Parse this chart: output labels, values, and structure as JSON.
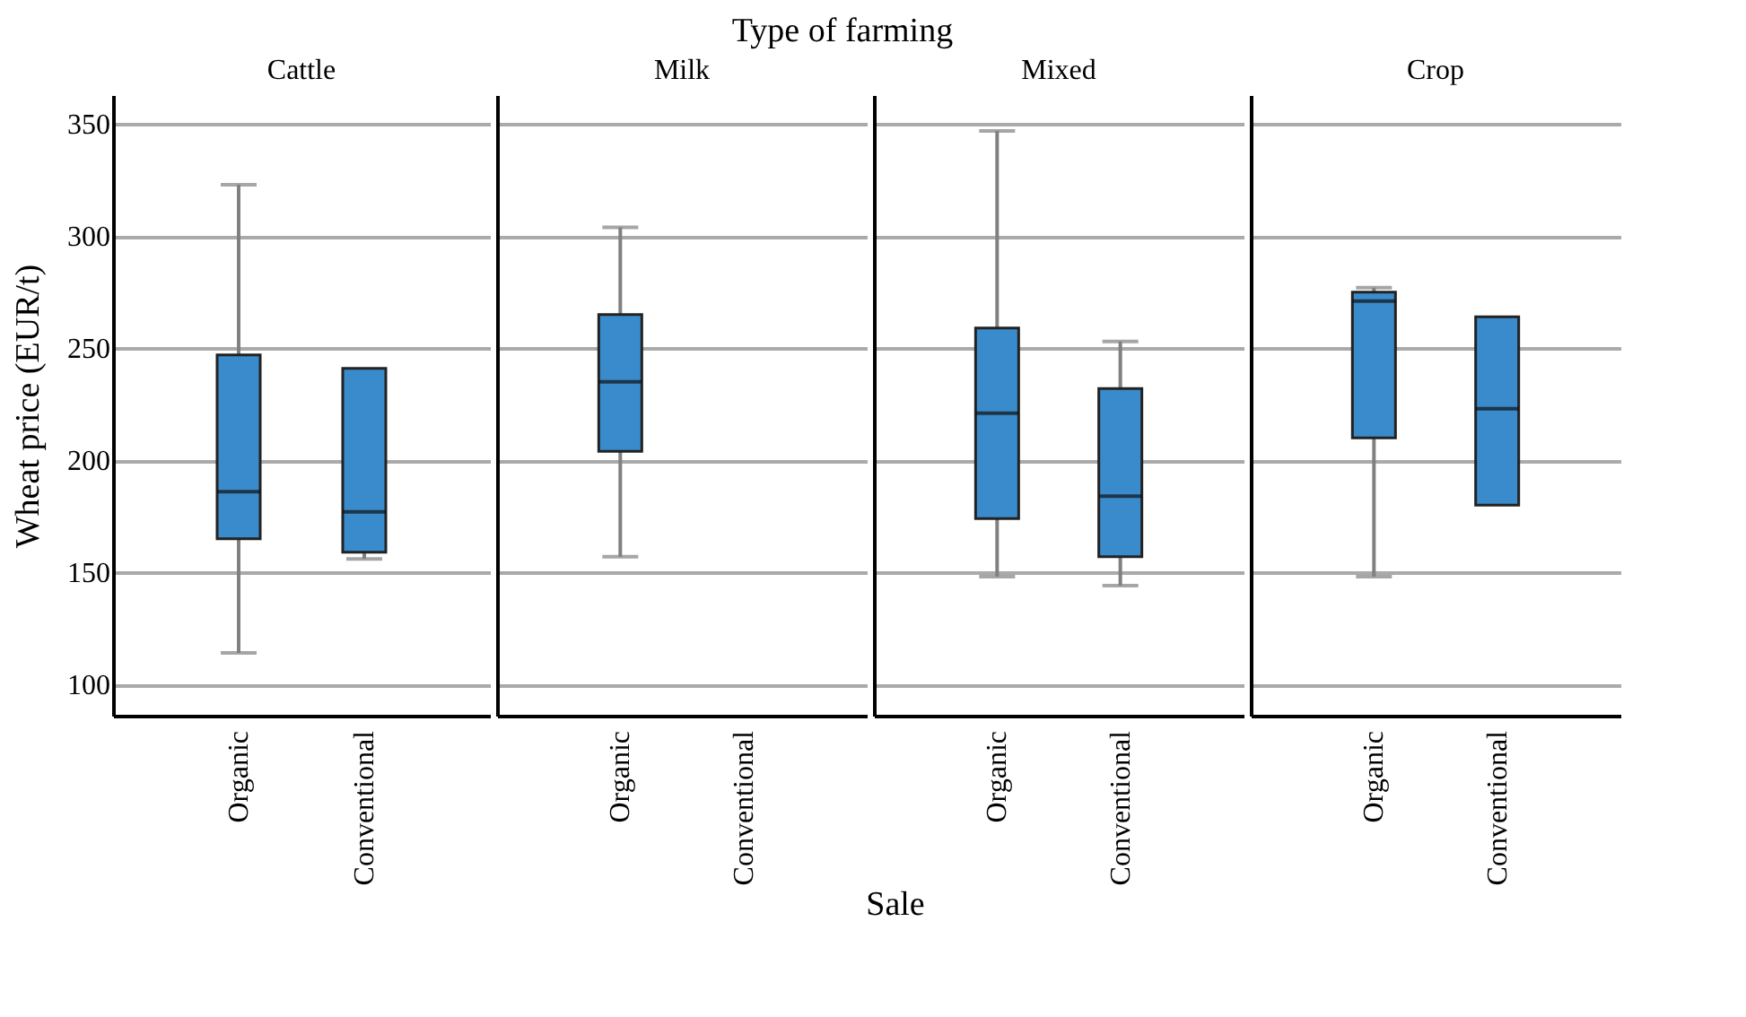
{
  "chart_data": [
    {
      "type": "box",
      "title": "Cattle",
      "ylabel": "Wheat price (EUR/t)",
      "annotations": [
        "Type of farming",
        "Sale"
      ],
      "categories": [
        "Organic",
        "Conventional"
      ],
      "color": "#3a8bcb",
      "ylim": [
        86,
        363
      ],
      "yticks": [
        100,
        150,
        200,
        250,
        300,
        350
      ],
      "grid": "y",
      "boxes": [
        {
          "low": 114,
          "q1": 165,
          "median": 186,
          "q3": 247,
          "high": 323
        },
        {
          "low": 156,
          "q1": 159,
          "median": 177,
          "q3": 241,
          "high": 241
        }
      ]
    },
    {
      "type": "box",
      "title": "Milk",
      "categories": [
        "Organic",
        "Conventional"
      ],
      "color": "#3a8bcb",
      "ylim": [
        86,
        363
      ],
      "yticks": [
        100,
        150,
        200,
        250,
        300,
        350
      ],
      "grid": "y",
      "tick_labels": "x",
      "boxes": [
        {
          "low": 157,
          "q1": 204,
          "median": 235,
          "q3": 265,
          "high": 304
        },
        null
      ]
    },
    {
      "type": "box",
      "title": "Mixed",
      "categories": [
        "Organic",
        "Conventional"
      ],
      "color": "#3a8bcb",
      "ylim": [
        86,
        363
      ],
      "yticks": [
        100,
        150,
        200,
        250,
        300,
        350
      ],
      "grid": "y",
      "tick_labels": "x",
      "boxes": [
        {
          "low": 148,
          "q1": 174,
          "median": 221,
          "q3": 259,
          "high": 347
        },
        {
          "low": 144,
          "q1": 157,
          "median": 184,
          "q3": 232,
          "high": 253
        }
      ]
    },
    {
      "type": "box",
      "title": "Crop",
      "categories": [
        "Organic",
        "Conventional"
      ],
      "color": "#3a8bcb",
      "ylim": [
        86,
        363
      ],
      "yticks": [
        100,
        150,
        200,
        250,
        300,
        350
      ],
      "grid": "y",
      "tick_labels": "x",
      "boxes": [
        {
          "low": 148,
          "q1": 210,
          "median": 271,
          "q3": 275,
          "high": 277
        },
        {
          "low": 180,
          "q1": 180,
          "median": 223,
          "q3": 264,
          "high": 264
        }
      ]
    }
  ]
}
